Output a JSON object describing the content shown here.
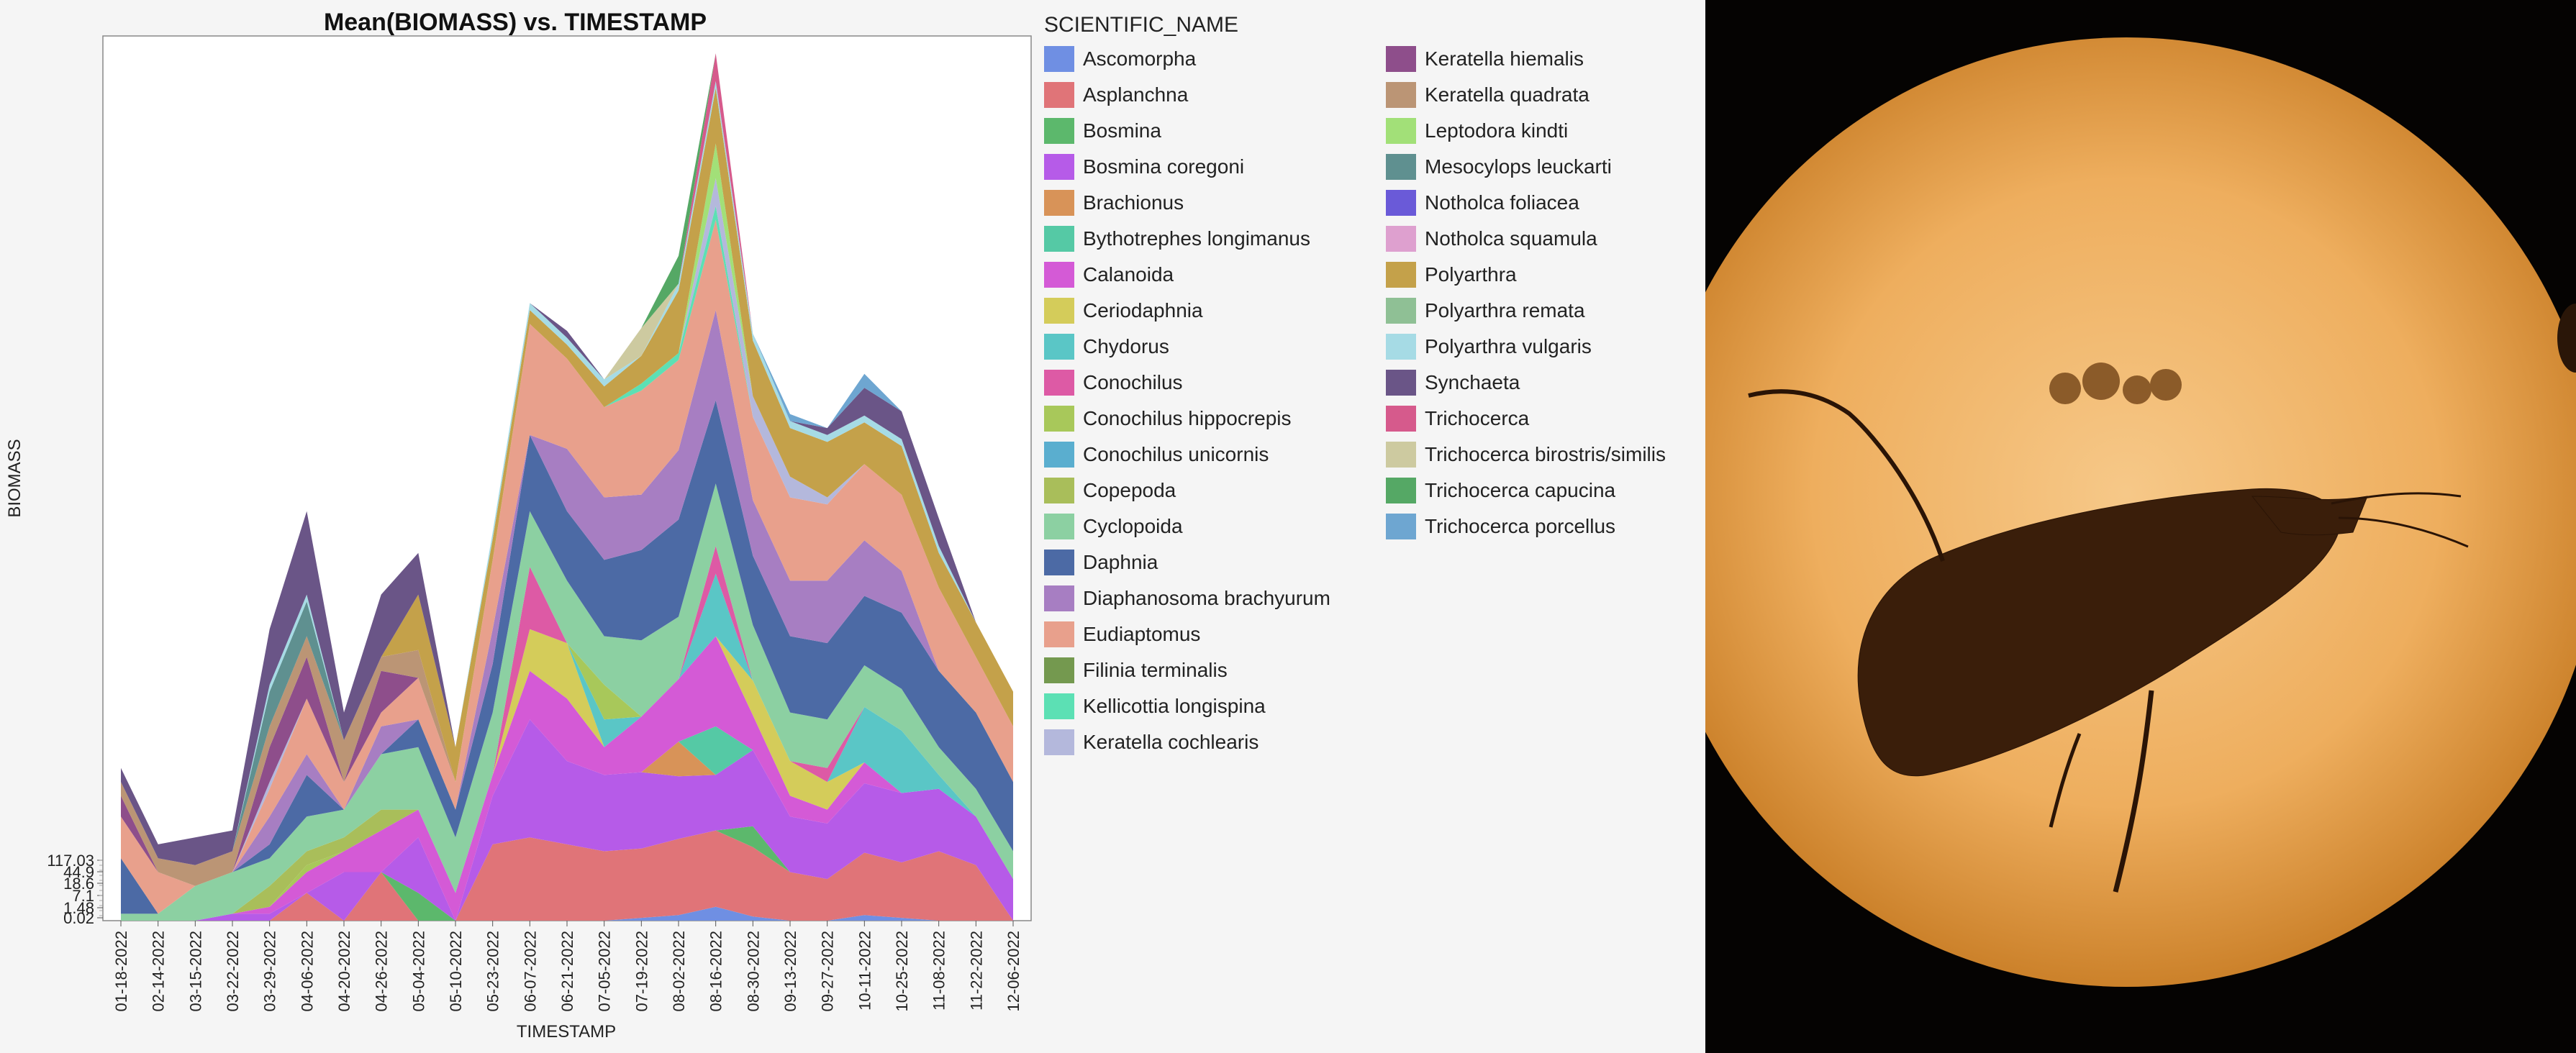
{
  "chart_data": {
    "type": "area",
    "title": "Mean(BIOMASS) vs. TIMESTAMP",
    "xlabel": "TIMESTAMP",
    "ylabel": "BIOMASS",
    "y_ticks": [
      "0.02",
      "1.48",
      "7.1",
      "18.6",
      "44.9",
      "117.03"
    ],
    "legend_title": "SCIENTIFIC_NAME",
    "legend_position": "right",
    "grid": false,
    "stacked": true,
    "categories": [
      "01-18-2022",
      "02-14-2022",
      "03-15-2022",
      "03-22-2022",
      "03-29-2022",
      "04-06-2022",
      "04-20-2022",
      "04-26-2022",
      "05-04-2022",
      "05-10-2022",
      "05-23-2022",
      "06-07-2022",
      "06-21-2022",
      "07-05-2022",
      "07-19-2022",
      "08-02-2022",
      "08-16-2022",
      "08-30-2022",
      "09-13-2022",
      "09-27-2022",
      "10-11-2022",
      "10-25-2022",
      "11-08-2022",
      "11-22-2022",
      "12-06-2022"
    ],
    "series": [
      {
        "name": "Ascomorpha",
        "color": "#6f8fe3",
        "values": [
          0,
          0,
          0,
          0,
          0,
          0,
          0,
          0,
          0,
          0,
          0,
          0,
          0,
          0,
          4,
          8,
          20,
          6,
          0,
          0,
          8,
          4,
          0,
          0,
          0
        ]
      },
      {
        "name": "Asplanchna",
        "color": "#e07478",
        "values": [
          0,
          0,
          0,
          0,
          0,
          40,
          0,
          70,
          0,
          0,
          110,
          120,
          110,
          100,
          100,
          110,
          110,
          100,
          70,
          60,
          90,
          80,
          100,
          80,
          0
        ]
      },
      {
        "name": "Bosmina",
        "color": "#5cb86c",
        "values": [
          0,
          0,
          0,
          0,
          0,
          0,
          0,
          0,
          40,
          0,
          0,
          0,
          0,
          0,
          0,
          0,
          0,
          30,
          0,
          0,
          0,
          0,
          0,
          0,
          0
        ]
      },
      {
        "name": "Bosmina coregoni",
        "color": "#b65be8",
        "values": [
          0,
          0,
          0,
          10,
          10,
          0,
          70,
          0,
          80,
          0,
          70,
          170,
          120,
          110,
          110,
          90,
          80,
          110,
          80,
          80,
          100,
          100,
          90,
          70,
          60
        ]
      },
      {
        "name": "Brachionus",
        "color": "#d89358",
        "values": [
          0,
          0,
          0,
          0,
          0,
          0,
          0,
          0,
          0,
          0,
          0,
          0,
          0,
          0,
          0,
          50,
          0,
          0,
          0,
          0,
          0,
          0,
          0,
          0,
          0
        ]
      },
      {
        "name": "Bythotrephes longimanus",
        "color": "#55c9a5",
        "values": [
          0,
          0,
          0,
          0,
          0,
          0,
          0,
          0,
          0,
          0,
          0,
          0,
          0,
          0,
          0,
          0,
          70,
          0,
          0,
          0,
          0,
          0,
          0,
          0,
          0
        ]
      },
      {
        "name": "Calanoida",
        "color": "#d45ad6",
        "values": [
          0,
          0,
          0,
          0,
          10,
          30,
          30,
          60,
          40,
          40,
          30,
          70,
          90,
          40,
          80,
          90,
          130,
          50,
          30,
          20,
          30,
          0,
          0,
          0,
          0
        ]
      },
      {
        "name": "Ceriodaphnia",
        "color": "#d4cc5a",
        "values": [
          0,
          0,
          0,
          0,
          0,
          0,
          0,
          0,
          0,
          0,
          0,
          60,
          80,
          0,
          0,
          0,
          0,
          50,
          50,
          40,
          0,
          0,
          0,
          0,
          0
        ]
      },
      {
        "name": "Chydorus",
        "color": "#5ac6c6",
        "values": [
          0,
          0,
          0,
          0,
          0,
          0,
          0,
          0,
          0,
          0,
          0,
          0,
          0,
          40,
          0,
          0,
          90,
          0,
          0,
          0,
          80,
          90,
          20,
          0,
          0
        ]
      },
      {
        "name": "Conochilus",
        "color": "#dd5aa5",
        "values": [
          0,
          0,
          0,
          0,
          0,
          0,
          0,
          0,
          0,
          0,
          0,
          90,
          0,
          0,
          0,
          0,
          40,
          0,
          0,
          20,
          0,
          0,
          0,
          0,
          0
        ]
      },
      {
        "name": "Conochilus hippocrepis",
        "color": "#a8c85a",
        "values": [
          0,
          0,
          0,
          0,
          0,
          10,
          0,
          0,
          0,
          0,
          0,
          0,
          0,
          50,
          0,
          0,
          0,
          0,
          0,
          0,
          0,
          0,
          0,
          0,
          0
        ]
      },
      {
        "name": "Conochilus unicornis",
        "color": "#5aaecf",
        "values": [
          0,
          0,
          0,
          0,
          0,
          0,
          0,
          0,
          0,
          0,
          0,
          0,
          0,
          0,
          0,
          0,
          0,
          0,
          0,
          0,
          0,
          0,
          0,
          0,
          0
        ]
      },
      {
        "name": "Copepoda",
        "color": "#a9be5a",
        "values": [
          0,
          0,
          0,
          0,
          30,
          20,
          20,
          30,
          0,
          0,
          0,
          0,
          0,
          0,
          0,
          0,
          0,
          0,
          0,
          0,
          0,
          0,
          0,
          0,
          0
        ]
      },
      {
        "name": "Cyclopoida",
        "color": "#8cd0a2",
        "values": [
          10,
          10,
          50,
          60,
          40,
          50,
          40,
          80,
          90,
          80,
          90,
          80,
          90,
          70,
          110,
          90,
          90,
          80,
          70,
          70,
          60,
          60,
          40,
          40,
          40
        ]
      },
      {
        "name": "Daphnia",
        "color": "#4c6aa5",
        "values": [
          80,
          0,
          0,
          0,
          20,
          60,
          0,
          0,
          40,
          40,
          70,
          110,
          100,
          110,
          130,
          140,
          120,
          100,
          110,
          110,
          100,
          110,
          110,
          110,
          100
        ]
      },
      {
        "name": "Diaphanosoma brachyurum",
        "color": "#a77ec2",
        "values": [
          0,
          0,
          0,
          0,
          40,
          30,
          0,
          40,
          0,
          0,
          50,
          0,
          90,
          90,
          80,
          100,
          130,
          80,
          80,
          90,
          80,
          60,
          0,
          0,
          0
        ]
      },
      {
        "name": "Eudiaptomus",
        "color": "#e8a08c",
        "values": [
          60,
          60,
          0,
          0,
          40,
          80,
          40,
          20,
          60,
          40,
          100,
          160,
          130,
          130,
          150,
          130,
          130,
          120,
          120,
          110,
          110,
          110,
          120,
          80,
          80
        ]
      },
      {
        "name": "Filinia terminalis",
        "color": "#74994f",
        "values": [
          0,
          0,
          0,
          0,
          0,
          0,
          0,
          0,
          0,
          0,
          0,
          0,
          0,
          0,
          0,
          0,
          0,
          0,
          0,
          0,
          0,
          0,
          0,
          0,
          0
        ]
      },
      {
        "name": "Kellicottia longispina",
        "color": "#5ce0b4",
        "values": [
          0,
          0,
          0,
          0,
          0,
          0,
          0,
          0,
          0,
          0,
          0,
          0,
          0,
          0,
          10,
          10,
          20,
          0,
          0,
          0,
          0,
          0,
          0,
          0,
          0
        ]
      },
      {
        "name": "Keratella cochlearis",
        "color": "#b4b8dc",
        "values": [
          0,
          0,
          0,
          0,
          10,
          0,
          0,
          0,
          0,
          0,
          0,
          0,
          0,
          0,
          0,
          0,
          40,
          30,
          30,
          10,
          0,
          0,
          0,
          0,
          0
        ]
      },
      {
        "name": "Keratella hiemalis",
        "color": "#8e4e8b",
        "values": [
          30,
          0,
          0,
          0,
          50,
          60,
          0,
          60,
          0,
          0,
          0,
          0,
          0,
          0,
          0,
          0,
          0,
          0,
          0,
          0,
          0,
          0,
          0,
          0,
          0
        ]
      },
      {
        "name": "Keratella quadrata",
        "color": "#bb9575",
        "values": [
          20,
          20,
          30,
          30,
          30,
          30,
          60,
          20,
          40,
          0,
          0,
          0,
          0,
          0,
          0,
          0,
          0,
          0,
          0,
          0,
          0,
          0,
          0,
          0,
          0
        ]
      },
      {
        "name": "Leptodora kindti",
        "color": "#a2e078",
        "values": [
          0,
          0,
          0,
          0,
          0,
          0,
          0,
          0,
          0,
          0,
          0,
          0,
          0,
          0,
          0,
          0,
          50,
          0,
          0,
          0,
          0,
          0,
          0,
          0,
          0
        ]
      },
      {
        "name": "Mesocylops leuckarti",
        "color": "#5f9090",
        "values": [
          0,
          0,
          0,
          0,
          50,
          50,
          0,
          0,
          0,
          0,
          0,
          0,
          0,
          0,
          0,
          0,
          0,
          0,
          0,
          0,
          0,
          0,
          0,
          0,
          0
        ]
      },
      {
        "name": "Notholca foliacea",
        "color": "#6a5ad8",
        "values": [
          0,
          0,
          0,
          0,
          0,
          0,
          0,
          0,
          0,
          0,
          0,
          0,
          0,
          0,
          0,
          0,
          0,
          0,
          0,
          0,
          0,
          0,
          0,
          0,
          0
        ]
      },
      {
        "name": "Notholca squamula",
        "color": "#dea0cf",
        "values": [
          0,
          0,
          0,
          0,
          0,
          0,
          0,
          0,
          0,
          0,
          0,
          0,
          0,
          0,
          0,
          0,
          0,
          0,
          0,
          0,
          0,
          0,
          0,
          0,
          0
        ]
      },
      {
        "name": "Polyarthra",
        "color": "#c4a14a",
        "values": [
          0,
          0,
          0,
          0,
          0,
          0,
          0,
          0,
          80,
          50,
          30,
          20,
          20,
          30,
          40,
          90,
          80,
          80,
          70,
          80,
          60,
          70,
          50,
          50,
          50
        ]
      },
      {
        "name": "Polyarthra remata",
        "color": "#8fc095",
        "values": [
          0,
          0,
          0,
          0,
          0,
          0,
          0,
          0,
          0,
          0,
          0,
          0,
          0,
          0,
          0,
          0,
          0,
          0,
          0,
          0,
          0,
          0,
          0,
          0,
          0
        ]
      },
      {
        "name": "Polyarthra vulgaris",
        "color": "#a6dbe5",
        "values": [
          0,
          0,
          0,
          0,
          10,
          10,
          0,
          0,
          0,
          0,
          10,
          10,
          10,
          10,
          0,
          10,
          10,
          10,
          10,
          10,
          10,
          10,
          10,
          0,
          0
        ]
      },
      {
        "name": "Synchaeta",
        "color": "#6a5587",
        "values": [
          20,
          20,
          40,
          30,
          80,
          120,
          40,
          90,
          60,
          0,
          0,
          0,
          10,
          0,
          0,
          0,
          0,
          0,
          0,
          10,
          40,
          40,
          40,
          0,
          0
        ]
      },
      {
        "name": "Trichocerca",
        "color": "#d65a8c",
        "values": [
          0,
          0,
          0,
          0,
          0,
          0,
          0,
          0,
          0,
          0,
          0,
          0,
          0,
          0,
          0,
          0,
          40,
          0,
          0,
          0,
          0,
          0,
          0,
          0,
          0
        ]
      },
      {
        "name": "Trichocerca birostris/similis",
        "color": "#cdcaa0",
        "values": [
          0,
          0,
          0,
          0,
          0,
          0,
          0,
          0,
          0,
          0,
          0,
          0,
          0,
          0,
          40,
          0,
          0,
          0,
          0,
          0,
          0,
          0,
          0,
          0,
          0
        ]
      },
      {
        "name": "Trichocerca capucina",
        "color": "#55a865",
        "values": [
          0,
          0,
          0,
          0,
          0,
          0,
          0,
          0,
          0,
          0,
          0,
          0,
          0,
          0,
          0,
          40,
          0,
          0,
          0,
          0,
          0,
          0,
          0,
          0,
          0
        ]
      },
      {
        "name": "Trichocerca porcellus",
        "color": "#6ea6d1",
        "values": [
          0,
          0,
          0,
          0,
          0,
          0,
          0,
          0,
          0,
          0,
          0,
          0,
          0,
          0,
          0,
          0,
          0,
          0,
          10,
          0,
          20,
          0,
          0,
          0,
          0
        ]
      }
    ]
  }
}
